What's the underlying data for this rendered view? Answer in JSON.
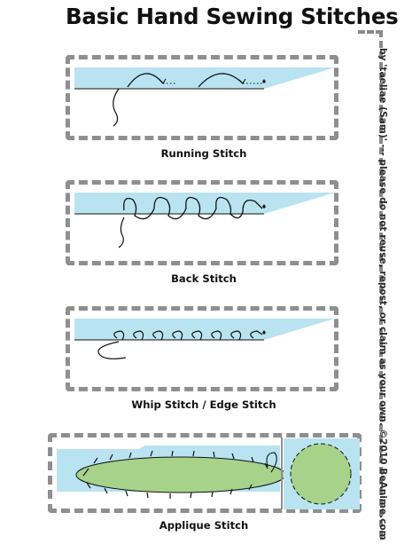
{
  "title": "Basic Hand Sewing Stitches",
  "credit": "by 'taeliae (Sam)' --- please do not reuse, repost, or claim as your own. ©2010 BeAnime.com",
  "stitches": [
    {
      "label": "Running Stitch"
    },
    {
      "label": "Back Stitch"
    },
    {
      "label": "Whip Stitch / Edge Stitch"
    },
    {
      "label": "Applique Stitch"
    }
  ],
  "colors": {
    "fabric": "#b9e3f1",
    "applique": "#a6d28a",
    "border": "#8f8f8f",
    "thread": "#111111"
  }
}
